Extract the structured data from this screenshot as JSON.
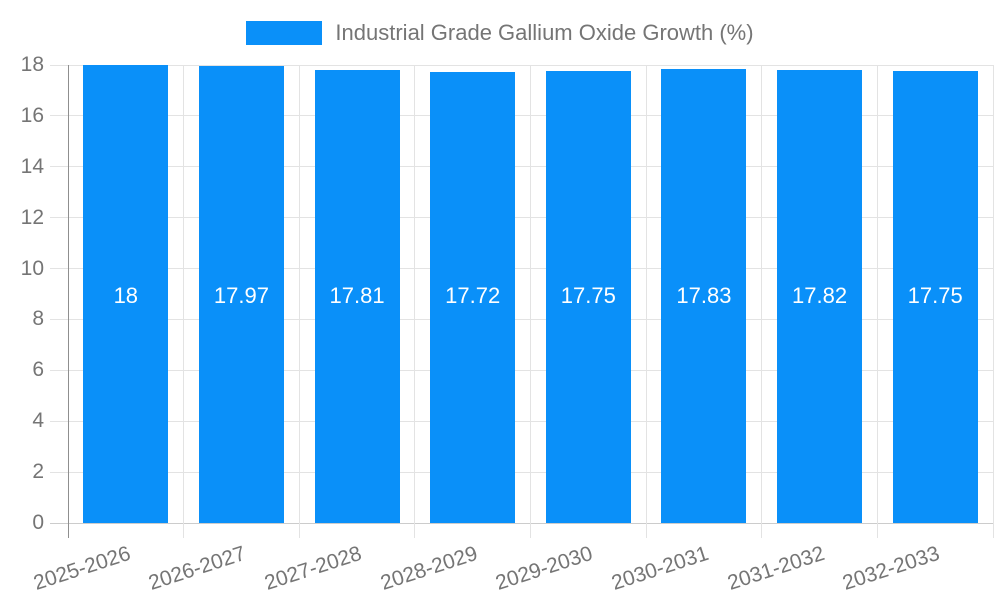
{
  "legend": {
    "label": "Industrial Grade Gallium Oxide Growth (%)"
  },
  "colors": {
    "bar": "#0a90f9",
    "axis_text": "#757575",
    "grid_line": "#e3e3e3",
    "zero_line": "#cccccc",
    "axis_line": "#8f8f8f",
    "value_label": "#ffffff"
  },
  "chart_data": {
    "type": "bar",
    "title": "Industrial Grade Gallium Oxide Growth (%)",
    "categories": [
      "2025-2026",
      "2026-2027",
      "2027-2028",
      "2028-2029",
      "2029-2030",
      "2030-2031",
      "2031-2032",
      "2032-2033"
    ],
    "values": [
      18,
      17.97,
      17.81,
      17.72,
      17.75,
      17.83,
      17.82,
      17.75
    ],
    "value_labels": [
      "18",
      "17.97",
      "17.81",
      "17.72",
      "17.75",
      "17.83",
      "17.82",
      "17.75"
    ],
    "xlabel": "",
    "ylabel": "",
    "ylim": [
      0,
      18
    ],
    "yticks": [
      0,
      2,
      4,
      6,
      8,
      10,
      12,
      14,
      16,
      18
    ],
    "grid": true,
    "legend_position": "top",
    "x_label_rotation_deg": -18
  }
}
